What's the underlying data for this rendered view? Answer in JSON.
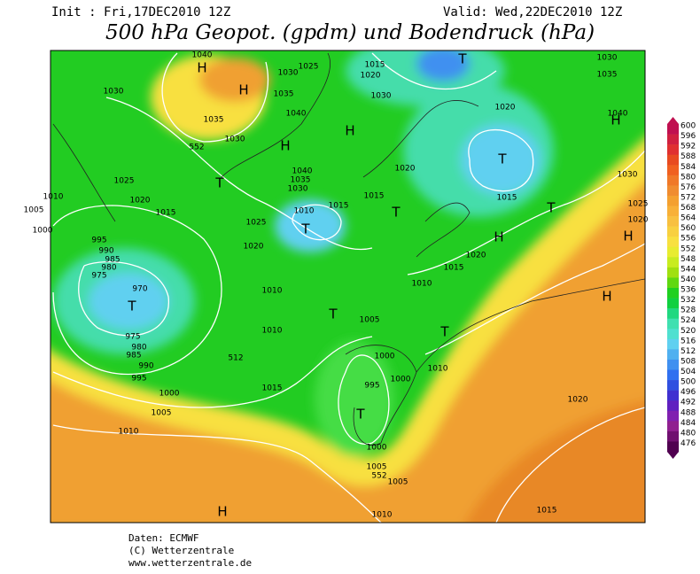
{
  "header": {
    "init": "Init : Fri,17DEC2010 12Z",
    "valid": "Valid: Wed,22DEC2010 12Z",
    "title": "500 hPa Geopot. (gpdm) und Bodendruck (hPa)"
  },
  "map": {
    "pressure_labels": [
      1040,
      1025,
      1015,
      1020,
      1030,
      1035,
      1030,
      1035,
      1030,
      1020,
      1040,
      1035,
      1040,
      1030,
      1040,
      1035,
      1030,
      1020,
      1025,
      1020,
      1015,
      1015,
      1010,
      1015,
      1025,
      1020,
      1005,
      1000,
      995,
      990,
      985,
      980,
      975,
      970,
      1010,
      1015,
      1020,
      1010,
      1015,
      1005,
      1010,
      975,
      980,
      985,
      990,
      995,
      512,
      1000,
      1000,
      995,
      1015,
      1000,
      1005,
      1010,
      1010,
      1020,
      1000,
      1005,
      552,
      1005,
      1010,
      1015,
      552,
      1030,
      1025,
      1020,
      1010,
      1030
    ],
    "centers": [
      "H",
      "H",
      "H",
      "H",
      "H",
      "H",
      "H",
      "H",
      "H",
      "T",
      "T",
      "T",
      "T",
      "T",
      "T",
      "T",
      "T",
      "T",
      "T"
    ]
  },
  "colorbar": {
    "labels": [
      600,
      596,
      592,
      588,
      584,
      580,
      576,
      572,
      568,
      564,
      560,
      556,
      552,
      548,
      544,
      540,
      536,
      532,
      528,
      524,
      520,
      516,
      512,
      508,
      504,
      500,
      496,
      492,
      488,
      484,
      480,
      476
    ],
    "colors": [
      "#c01050",
      "#d02040",
      "#e03030",
      "#e84a20",
      "#f06020",
      "#f07828",
      "#f08c30",
      "#f4a030",
      "#f8b038",
      "#f8c040",
      "#f8d040",
      "#f8e040",
      "#e8ec30",
      "#c8ec20",
      "#a0e010",
      "#60d810",
      "#20d020",
      "#10d040",
      "#20d880",
      "#40e0b0",
      "#50e0d0",
      "#60d0f0",
      "#50b0f0",
      "#4090f0",
      "#3070f0",
      "#3050e0",
      "#4030d0",
      "#6020c0",
      "#8020b0",
      "#902090",
      "#701070",
      "#500050"
    ]
  },
  "footer": {
    "source": "Daten: ECMWF",
    "copyright": "(C) Wetterzentrale",
    "url": "www.wetterzentrale.de"
  }
}
